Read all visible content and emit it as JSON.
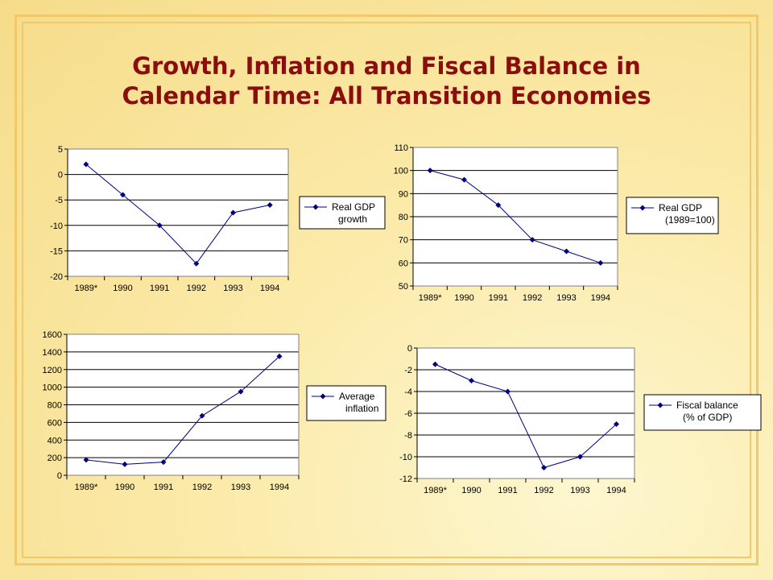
{
  "slide": {
    "title_line1": "Growth, Inflation and Fiscal Balance in",
    "title_line2": "Calendar Time: All Transition Economies"
  },
  "colors": {
    "title": "#8b0e0e",
    "series": "#000080",
    "frame": "#f2c96a"
  },
  "chart_data": [
    {
      "type": "line",
      "categories": [
        "1989*",
        "1990",
        "1991",
        "1992",
        "1993",
        "1994"
      ],
      "series": [
        {
          "name": "Real GDP growth",
          "values": [
            2,
            -4,
            -10,
            -17.5,
            -7.5,
            -6
          ]
        }
      ],
      "legend_lines": [
        "Real GDP",
        "growth"
      ],
      "ylim": [
        -20,
        5
      ],
      "yticks": [
        5,
        0,
        -5,
        -10,
        -15,
        -20
      ],
      "grid": true,
      "legend_position": "right"
    },
    {
      "type": "line",
      "categories": [
        "1989*",
        "1990",
        "1991",
        "1992",
        "1993",
        "1994"
      ],
      "series": [
        {
          "name": "Real GDP (1989=100)",
          "values": [
            100,
            96,
            85,
            70,
            65,
            60
          ]
        }
      ],
      "legend_lines": [
        "Real GDP",
        "(1989=100)"
      ],
      "ylim": [
        50,
        110
      ],
      "yticks": [
        110,
        100,
        90,
        80,
        70,
        60,
        50
      ],
      "grid": true,
      "legend_position": "right"
    },
    {
      "type": "line",
      "categories": [
        "1989*",
        "1990",
        "1991",
        "1992",
        "1993",
        "1994"
      ],
      "series": [
        {
          "name": "Average inflation",
          "values": [
            175,
            125,
            150,
            675,
            950,
            1350
          ]
        }
      ],
      "legend_lines": [
        "Average",
        "inflation"
      ],
      "ylim": [
        0,
        1600
      ],
      "yticks": [
        1600,
        1400,
        1200,
        1000,
        800,
        600,
        400,
        200,
        0
      ],
      "grid": true,
      "legend_position": "right"
    },
    {
      "type": "line",
      "categories": [
        "1989*",
        "1990",
        "1991",
        "1992",
        "1993",
        "1994"
      ],
      "series": [
        {
          "name": "Fiscal balance (% of GDP)",
          "values": [
            -1.5,
            -3,
            -4,
            -11,
            -10,
            -7
          ]
        }
      ],
      "legend_lines": [
        "Fiscal balance",
        "(% of GDP)"
      ],
      "ylim": [
        -12,
        0
      ],
      "yticks": [
        0,
        -2,
        -4,
        -6,
        -8,
        -10,
        -12
      ],
      "grid": true,
      "legend_position": "right"
    }
  ]
}
